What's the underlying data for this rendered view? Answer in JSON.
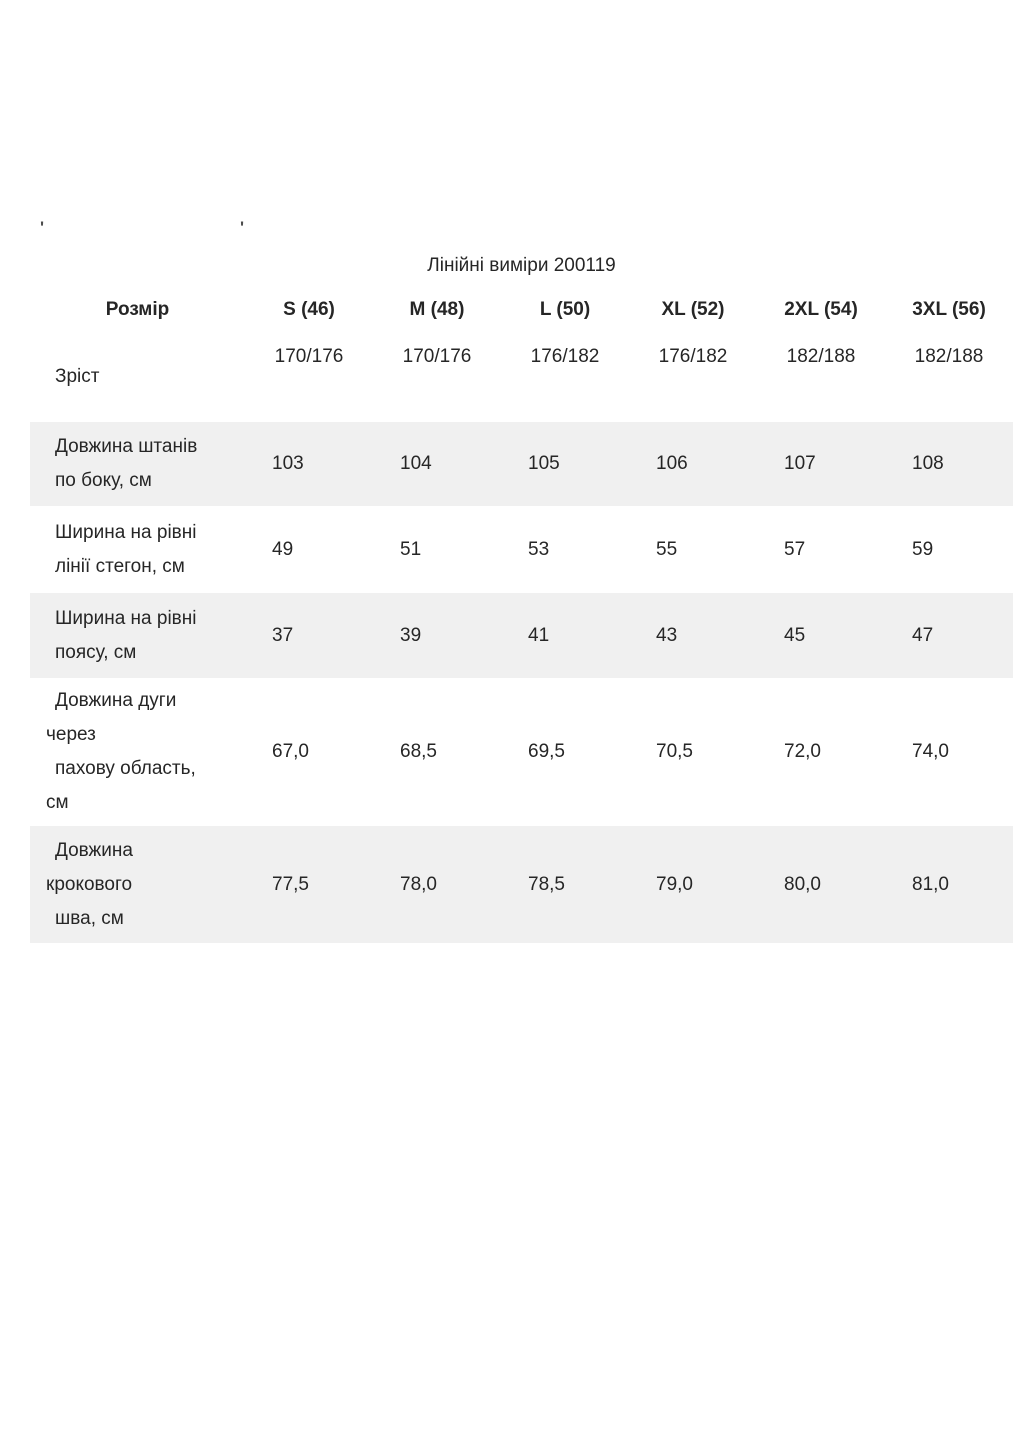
{
  "title": "Лінійні виміри 200119",
  "marks": {
    "left": "'",
    "right": "'"
  },
  "colors": {
    "shaded_row": "#f0f0f0",
    "text": "#262626"
  },
  "table": {
    "header": {
      "label": "Розмір",
      "sizes": [
        "S (46)",
        "M (48)",
        "L (50)",
        "XL (52)",
        "2XL (54)",
        "3XL (56)"
      ]
    },
    "rows": [
      {
        "label": "Зріст",
        "label_lines": [
          "Зріст"
        ],
        "values": [
          "170/176",
          "170/176",
          "176/182",
          "176/182",
          "182/188",
          "182/188"
        ],
        "shaded": false
      },
      {
        "label": "Довжина штанів по боку, см",
        "label_lines": [
          "Довжина штанів",
          "по боку, см"
        ],
        "values": [
          "103",
          "104",
          "105",
          "106",
          "107",
          "108"
        ],
        "shaded": true
      },
      {
        "label": "Ширина на рівні лінії стегон, см",
        "label_lines": [
          "Ширина на рівні",
          "лінії стегон, см"
        ],
        "values": [
          "49",
          "51",
          "53",
          "55",
          "57",
          "59"
        ],
        "shaded": false
      },
      {
        "label": "Ширина на рівні поясу, см",
        "label_lines": [
          "Ширина на рівні",
          "поясу, см"
        ],
        "values": [
          "37",
          "39",
          "41",
          "43",
          "45",
          "47"
        ],
        "shaded": true
      },
      {
        "label": "Довжина дуги через пахову область, см",
        "label_lines": [
          "Довжина дуги",
          "через",
          "пахову область,",
          "см"
        ],
        "values": [
          "67,0",
          "68,5",
          "69,5",
          "70,5",
          "72,0",
          "74,0"
        ],
        "shaded": false
      },
      {
        "label": "Довжина крокового шва, см",
        "label_lines": [
          "Довжина",
          "крокового",
          "шва, см"
        ],
        "values": [
          "77,5",
          "78,0",
          "78,5",
          "79,0",
          "80,0",
          "81,0"
        ],
        "shaded": true
      }
    ]
  }
}
